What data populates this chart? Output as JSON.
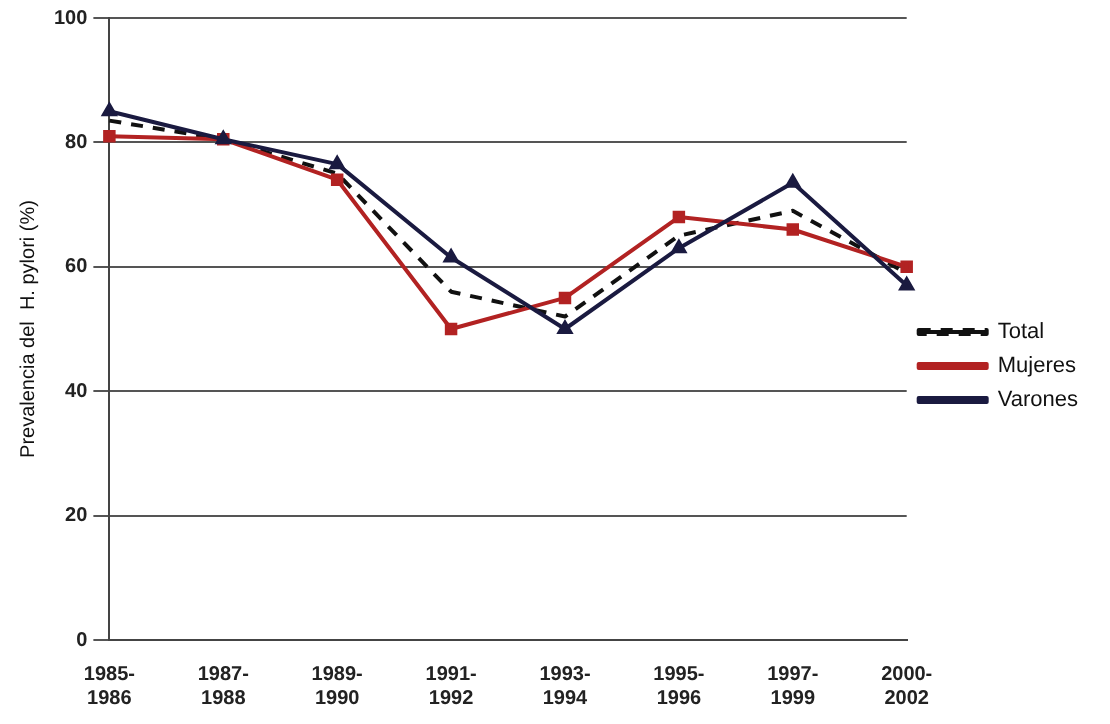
{
  "chart_data": {
    "type": "line",
    "ylabel": "Prevalencia del  H. pylori (%)",
    "categories": [
      "1985-\n1986",
      "1987-\n1988",
      "1989-\n1990",
      "1991-\n1992",
      "1993-\n1994",
      "1995-\n1996",
      "1997-\n1999",
      "2000-\n2002"
    ],
    "series": [
      {
        "name": "Total",
        "color": "#111111",
        "line_style": "dashed",
        "marker": "none",
        "values": [
          83.5,
          80.5,
          75,
          56,
          52,
          65,
          69,
          59
        ]
      },
      {
        "name": "Mujeres",
        "color": "#b22222",
        "line_style": "solid",
        "marker": "square",
        "values": [
          81,
          80.5,
          74,
          50,
          55,
          68,
          66,
          60
        ]
      },
      {
        "name": "Varones",
        "color": "#1a1a40",
        "line_style": "solid",
        "marker": "triangle",
        "values": [
          85,
          80.5,
          76.5,
          61.5,
          50,
          63,
          73.5,
          57
        ]
      }
    ],
    "ylim": [
      0,
      100
    ],
    "yticks": [
      0,
      20,
      40,
      60,
      80,
      100
    ],
    "grid": "y",
    "legend": "right"
  }
}
